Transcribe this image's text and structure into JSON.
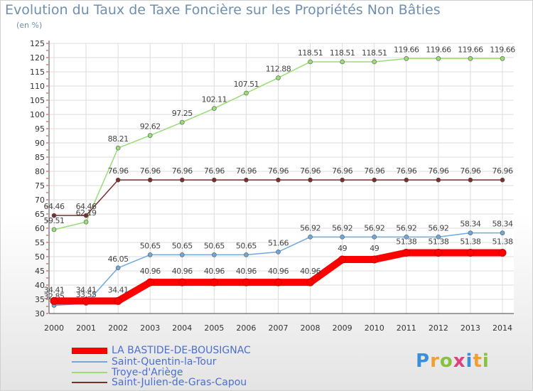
{
  "header": {
    "title": "Evolution du Taux de Taxe Foncière sur les Propriétés Non Bâties",
    "unit": "(en %)"
  },
  "logo": {
    "text": "Proxiti"
  },
  "chart_data": {
    "type": "line",
    "title": "Evolution du Taux de Taxe Foncière sur les Propriétés Non Bâties",
    "ylabel": "(en %)",
    "xlabel": "",
    "ylim": [
      30,
      125
    ],
    "yticks": [
      "30",
      "35",
      "40",
      "45",
      "50",
      "55",
      "60",
      "65",
      "70",
      "75",
      "80",
      "85",
      "90",
      "95",
      "100",
      "105",
      "110",
      "115",
      "120",
      "125"
    ],
    "categories": [
      "2000",
      "2001",
      "2002",
      "2003",
      "2004",
      "2005",
      "2006",
      "2007",
      "2008",
      "2009",
      "2010",
      "2011",
      "2012",
      "2013",
      "2014"
    ],
    "grid": true,
    "legend_position": "bottom-left",
    "series": [
      {
        "name": "LA BASTIDE-DE-BOUSIGNAC",
        "color": "#ff0000",
        "values": [
          34.41,
          34.41,
          34.41,
          40.96,
          40.96,
          40.96,
          40.96,
          40.96,
          40.96,
          49,
          49,
          51.38,
          51.38,
          51.38,
          51.38
        ],
        "labels": [
          "34.41",
          "34.41",
          "34.41",
          "40.96",
          "40.96",
          "40.96",
          "40.96",
          "40.96",
          "40.96",
          "49",
          "49",
          "51.38",
          "51.38",
          "51.38",
          "51.38"
        ]
      },
      {
        "name": "Saint-Quentin-la-Tour",
        "color": "#6fa8dc",
        "values": [
          32.85,
          33.55,
          46.05,
          50.65,
          50.65,
          50.65,
          50.65,
          51.66,
          56.92,
          56.92,
          56.92,
          56.92,
          56.92,
          58.34,
          58.34
        ],
        "labels": [
          "32.85",
          "33.55",
          "46.05",
          "50.65",
          "50.65",
          "50.65",
          "50.65",
          "51.66",
          "56.92",
          "56.92",
          "56.92",
          "56.92",
          "56.92",
          "58.34",
          "58.34"
        ]
      },
      {
        "name": "Troye-d'Ariège",
        "color": "#99dd77",
        "values": [
          59.51,
          62.19,
          88.21,
          92.62,
          97.25,
          102.11,
          107.51,
          112.88,
          118.51,
          118.51,
          118.51,
          119.66,
          119.66,
          119.66,
          119.66
        ],
        "labels": [
          "59.51",
          "62.19",
          "88.21",
          "92.62",
          "97.25",
          "102.11",
          "107.51",
          "112.88",
          "118.51",
          "118.51",
          "118.51",
          "119.66",
          "119.66",
          "119.66",
          "119.66"
        ]
      },
      {
        "name": "Saint-Julien-de-Gras-Capou",
        "color": "#7a2f2f",
        "values": [
          64.46,
          64.46,
          76.96,
          76.96,
          76.96,
          76.96,
          76.96,
          76.96,
          76.96,
          76.96,
          76.96,
          76.96,
          76.96,
          76.96,
          76.96
        ],
        "labels": [
          "64.46",
          "64.46",
          "76.96",
          "76.96",
          "76.96",
          "76.96",
          "76.96",
          "76.96",
          "76.96",
          "76.96",
          "76.96",
          "76.96",
          "76.96",
          "76.96",
          "76.96"
        ]
      }
    ]
  }
}
